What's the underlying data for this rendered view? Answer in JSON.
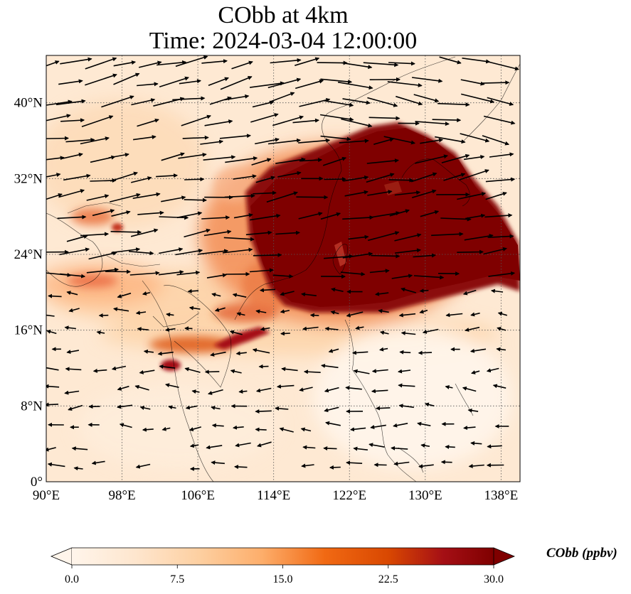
{
  "title": {
    "line1": "CObb at 4km",
    "line2": "Time: 2024-03-04 12:00:00"
  },
  "map": {
    "projection": "PlateCarree",
    "lon_range": [
      90,
      140
    ],
    "lat_range": [
      0,
      45
    ],
    "gridlines": "dotted",
    "lon_ticks": [
      {
        "value": 90,
        "label": "90°E"
      },
      {
        "value": 98,
        "label": "98°E"
      },
      {
        "value": 106,
        "label": "106°E"
      },
      {
        "value": 114,
        "label": "114°E"
      },
      {
        "value": 122,
        "label": "122°E"
      },
      {
        "value": 130,
        "label": "130°E"
      },
      {
        "value": 138,
        "label": "138°E"
      }
    ],
    "lat_ticks": [
      {
        "value": 0,
        "label": "0°"
      },
      {
        "value": 8,
        "label": "8°N"
      },
      {
        "value": 16,
        "label": "16°N"
      },
      {
        "value": 24,
        "label": "24°N"
      },
      {
        "value": 32,
        "label": "32°N"
      },
      {
        "value": 40,
        "label": "40°N"
      }
    ],
    "field": "CObb",
    "wind_vectors": true,
    "plume_colors": {
      "low": "#fff5eb",
      "mid": "#fdae6b",
      "high": "#d94801",
      "max": "#7f0000"
    }
  },
  "colorbar": {
    "title": "CObb (ppbv)",
    "min": 0.0,
    "max": 30.0,
    "extend": "both",
    "cmap": "OrRd",
    "ticks": [
      {
        "value": 0.0,
        "label": "0.0"
      },
      {
        "value": 7.5,
        "label": "7.5"
      },
      {
        "value": 15.0,
        "label": "15.0"
      },
      {
        "value": 22.5,
        "label": "22.5"
      },
      {
        "value": 30.0,
        "label": "30.0"
      }
    ],
    "stops": [
      "#fff5eb",
      "#fee6ce",
      "#fdd0a2",
      "#fdae6b",
      "#f16913",
      "#d94801",
      "#a50f15",
      "#7f0000"
    ]
  }
}
